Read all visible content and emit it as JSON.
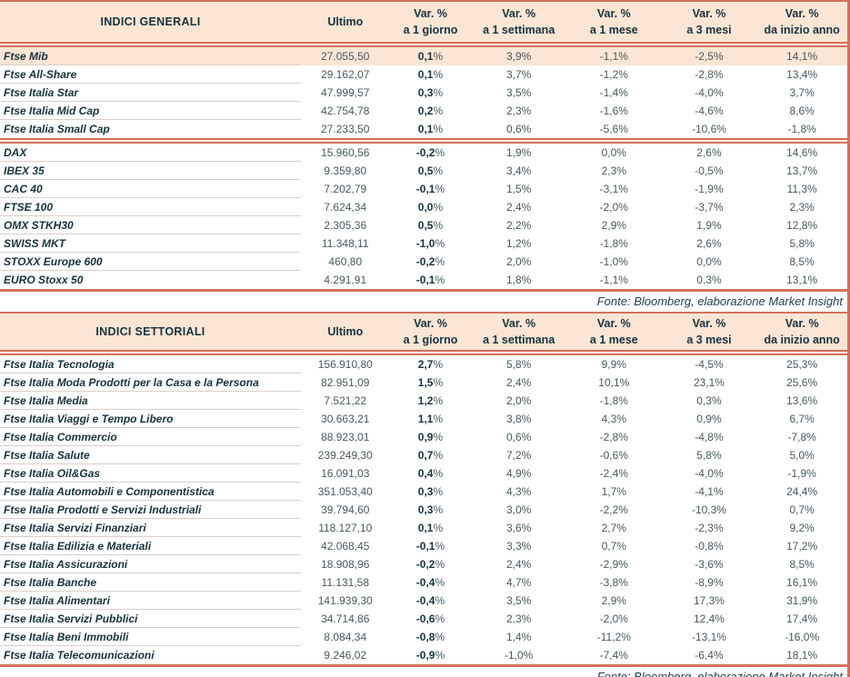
{
  "labels": {
    "var": "Var. %",
    "ultimo": "Ultimo",
    "periods": [
      "a 1 giorno",
      "a 1 settimana",
      "a 1 mese",
      "a 3 mesi",
      "da inizio anno"
    ]
  },
  "colors": {
    "accent_line": "#d5705c",
    "header_bg": "#fbe5d5",
    "highlight_row_bg": "#fbe5d5",
    "text_dark": "#17333d",
    "text_number": "#47595f",
    "row_separator": "#d9cfc9"
  },
  "tables": [
    {
      "id": "generali",
      "title": "INDICI GENERALI",
      "source": "Fonte: Bloomberg, elaborazione Market Insight",
      "groups": [
        {
          "highlight_first": true,
          "rows": [
            {
              "name": "Ftse Mib",
              "ultimo": "27.055,50",
              "d1": "0,1%",
              "w1": "3,9%",
              "m1": "-1,1%",
              "m3": "-2,5%",
              "ytd": "14,1%"
            },
            {
              "name": "Ftse All-Share",
              "ultimo": "29.162,07",
              "d1": "0,1%",
              "w1": "3,7%",
              "m1": "-1,2%",
              "m3": "-2,8%",
              "ytd": "13,4%"
            },
            {
              "name": "Ftse Italia Star",
              "ultimo": "47.999,57",
              "d1": "0,3%",
              "w1": "3,5%",
              "m1": "-1,4%",
              "m3": "-4,0%",
              "ytd": "3,7%"
            },
            {
              "name": "Ftse Italia Mid Cap",
              "ultimo": "42.754,78",
              "d1": "0,2%",
              "w1": "2,3%",
              "m1": "-1,6%",
              "m3": "-4,6%",
              "ytd": "8,6%"
            },
            {
              "name": "Ftse Italia Small Cap",
              "ultimo": "27.233,50",
              "d1": "0,1%",
              "w1": "0,6%",
              "m1": "-5,6%",
              "m3": "-10,6%",
              "ytd": "-1,8%"
            }
          ]
        },
        {
          "highlight_first": false,
          "rows": [
            {
              "name": "DAX",
              "ultimo": "15.960,56",
              "d1": "-0,2%",
              "w1": "1,9%",
              "m1": "0,0%",
              "m3": "2,6%",
              "ytd": "14,6%"
            },
            {
              "name": "IBEX 35",
              "ultimo": "9.359,80",
              "d1": "0,5%",
              "w1": "3,4%",
              "m1": "2,3%",
              "m3": "-0,5%",
              "ytd": "13,7%"
            },
            {
              "name": "CAC 40",
              "ultimo": "7.202,79",
              "d1": "-0,1%",
              "w1": "1,5%",
              "m1": "-3,1%",
              "m3": "-1,9%",
              "ytd": "11,3%"
            },
            {
              "name": "FTSE 100",
              "ultimo": "7.624,34",
              "d1": "0,0%",
              "w1": "2,4%",
              "m1": "-2,0%",
              "m3": "-3,7%",
              "ytd": "2,3%"
            },
            {
              "name": "OMX STKH30",
              "ultimo": "2.305,36",
              "d1": "0,5%",
              "w1": "2,2%",
              "m1": "2,9%",
              "m3": "1,9%",
              "ytd": "12,8%"
            },
            {
              "name": "SWISS MKT",
              "ultimo": "11.348,11",
              "d1": "-1,0%",
              "w1": "1,2%",
              "m1": "-1,8%",
              "m3": "2,6%",
              "ytd": "5,8%"
            },
            {
              "name": "STOXX Europe 600",
              "ultimo": "460,80",
              "d1": "-0,2%",
              "w1": "2,0%",
              "m1": "-1,0%",
              "m3": "0,0%",
              "ytd": "8,5%"
            },
            {
              "name": "EURO Stoxx 50",
              "ultimo": "4.291,91",
              "d1": "-0,1%",
              "w1": "1,8%",
              "m1": "-1,1%",
              "m3": "0,3%",
              "ytd": "13,1%"
            }
          ]
        }
      ]
    },
    {
      "id": "settoriali",
      "title": "INDICI SETTORIALI",
      "source": "Fonte: Bloomberg, elaborazione Market Insight",
      "groups": [
        {
          "highlight_first": false,
          "rows": [
            {
              "name": "Ftse Italia Tecnologia",
              "ultimo": "156.910,80",
              "d1": "2,7%",
              "w1": "5,8%",
              "m1": "9,9%",
              "m3": "-4,5%",
              "ytd": "25,3%"
            },
            {
              "name": "Ftse Italia Moda Prodotti per la Casa e la Persona",
              "ultimo": "82.951,09",
              "d1": "1,5%",
              "w1": "2,4%",
              "m1": "10,1%",
              "m3": "23,1%",
              "ytd": "25,6%"
            },
            {
              "name": "Ftse Italia Media",
              "ultimo": "7.521,22",
              "d1": "1,2%",
              "w1": "2,0%",
              "m1": "-1,8%",
              "m3": "0,3%",
              "ytd": "13,6%"
            },
            {
              "name": "Ftse Italia Viaggi e Tempo Libero",
              "ultimo": "30.663,21",
              "d1": "1,1%",
              "w1": "3,8%",
              "m1": "4,3%",
              "m3": "0,9%",
              "ytd": "6,7%"
            },
            {
              "name": "Ftse Italia Commercio",
              "ultimo": "88.923,01",
              "d1": "0,9%",
              "w1": "0,6%",
              "m1": "-2,8%",
              "m3": "-4,8%",
              "ytd": "-7,8%"
            },
            {
              "name": "Ftse Italia Salute",
              "ultimo": "239.249,30",
              "d1": "0,7%",
              "w1": "7,2%",
              "m1": "-0,6%",
              "m3": "5,8%",
              "ytd": "5,0%"
            },
            {
              "name": "Ftse Italia Oil&Gas",
              "ultimo": "16.091,03",
              "d1": "0,4%",
              "w1": "4,9%",
              "m1": "-2,4%",
              "m3": "-4,0%",
              "ytd": "-1,9%"
            },
            {
              "name": "Ftse Italia Automobili e Componentistica",
              "ultimo": "351.053,40",
              "d1": "0,3%",
              "w1": "4,3%",
              "m1": "1,7%",
              "m3": "-4,1%",
              "ytd": "24,4%"
            },
            {
              "name": "Ftse Italia Prodotti e Servizi Industriali",
              "ultimo": "39.794,60",
              "d1": "0,3%",
              "w1": "3,0%",
              "m1": "-2,2%",
              "m3": "-10,3%",
              "ytd": "0,7%"
            },
            {
              "name": "Ftse Italia Servizi Finanziari",
              "ultimo": "118.127,10",
              "d1": "0,1%",
              "w1": "3,6%",
              "m1": "2,7%",
              "m3": "-2,3%",
              "ytd": "9,2%"
            },
            {
              "name": "Ftse Italia Edilizia e Materiali",
              "ultimo": "42.068,45",
              "d1": "-0,1%",
              "w1": "3,3%",
              "m1": "0,7%",
              "m3": "-0,8%",
              "ytd": "17,2%"
            },
            {
              "name": "Ftse Italia Assicurazioni",
              "ultimo": "18.908,96",
              "d1": "-0,2%",
              "w1": "2,4%",
              "m1": "-2,9%",
              "m3": "-3,6%",
              "ytd": "8,5%"
            },
            {
              "name": "Ftse Italia Banche",
              "ultimo": "11.131,58",
              "d1": "-0,4%",
              "w1": "4,7%",
              "m1": "-3,8%",
              "m3": "-8,9%",
              "ytd": "16,1%"
            },
            {
              "name": "Ftse Italia Alimentari",
              "ultimo": "141.939,30",
              "d1": "-0,4%",
              "w1": "3,5%",
              "m1": "2,9%",
              "m3": "17,3%",
              "ytd": "31,9%"
            },
            {
              "name": "Ftse Italia Servizi Pubblici",
              "ultimo": "34.714,86",
              "d1": "-0,6%",
              "w1": "2,3%",
              "m1": "-2,0%",
              "m3": "12,4%",
              "ytd": "17,4%"
            },
            {
              "name": "Ftse Italia Beni Immobili",
              "ultimo": "8.084,34",
              "d1": "-0,8%",
              "w1": "1,4%",
              "m1": "-11,2%",
              "m3": "-13,1%",
              "ytd": "-16,0%"
            },
            {
              "name": "Ftse Italia Telecomunicazioni",
              "ultimo": "9.246,02",
              "d1": "-0,9%",
              "w1": "-1,0%",
              "m1": "-7,4%",
              "m3": "-6,4%",
              "ytd": "18,1%"
            }
          ]
        }
      ]
    }
  ]
}
